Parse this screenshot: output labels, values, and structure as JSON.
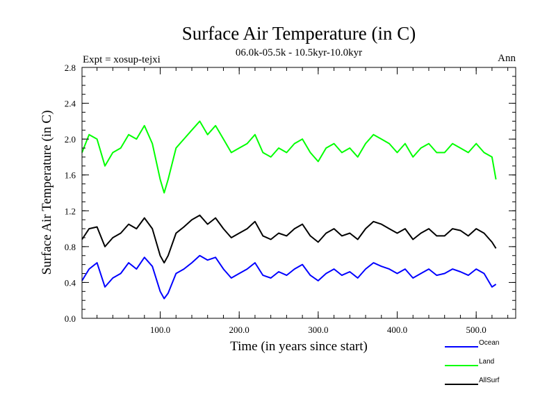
{
  "chart_data": {
    "type": "line",
    "title": "Surface Air Temperature (in C)",
    "subtitle": "06.0k-05.5k - 10.5kyr-10.0kyr",
    "expt_label": "Expt = xosup-tejxi",
    "period_label": "Ann",
    "xlabel": "Time (in years since start)",
    "ylabel": "Surface Air Temperature (in C)",
    "xlim": [
      1,
      550
    ],
    "ylim": [
      0.0,
      2.8
    ],
    "xticks": [
      100,
      200,
      300,
      400,
      500
    ],
    "xtick_labels": [
      "100.0",
      "200.0",
      "300.0",
      "400.0",
      "500.0"
    ],
    "yticks": [
      0.0,
      0.4,
      0.8,
      1.2,
      1.6,
      2.0,
      2.4,
      2.8
    ],
    "ytick_labels": [
      "0.0",
      "0.4",
      "0.8",
      "1.2",
      "1.6",
      "2.0",
      "2.4",
      "2.8"
    ],
    "x": [
      1,
      10,
      20,
      30,
      40,
      50,
      60,
      70,
      80,
      90,
      100,
      105,
      110,
      120,
      130,
      140,
      150,
      160,
      170,
      180,
      190,
      200,
      210,
      220,
      230,
      240,
      250,
      260,
      270,
      280,
      290,
      300,
      310,
      320,
      330,
      340,
      350,
      360,
      370,
      380,
      390,
      400,
      410,
      420,
      430,
      440,
      450,
      460,
      470,
      480,
      490,
      500,
      510,
      520,
      525
    ],
    "series": [
      {
        "name": "Ocean",
        "color": "#0000ff",
        "values": [
          0.42,
          0.55,
          0.62,
          0.35,
          0.45,
          0.5,
          0.62,
          0.55,
          0.68,
          0.58,
          0.3,
          0.22,
          0.28,
          0.5,
          0.55,
          0.62,
          0.7,
          0.65,
          0.68,
          0.55,
          0.45,
          0.5,
          0.55,
          0.62,
          0.48,
          0.45,
          0.52,
          0.48,
          0.55,
          0.6,
          0.48,
          0.42,
          0.5,
          0.55,
          0.48,
          0.52,
          0.45,
          0.55,
          0.62,
          0.58,
          0.55,
          0.5,
          0.55,
          0.45,
          0.5,
          0.55,
          0.48,
          0.5,
          0.55,
          0.52,
          0.48,
          0.55,
          0.5,
          0.35,
          0.38
        ]
      },
      {
        "name": "Land",
        "color": "#00ff00",
        "values": [
          1.85,
          2.05,
          2.0,
          1.7,
          1.85,
          1.9,
          2.05,
          2.0,
          2.15,
          1.95,
          1.55,
          1.4,
          1.55,
          1.9,
          2.0,
          2.1,
          2.2,
          2.05,
          2.15,
          2.0,
          1.85,
          1.9,
          1.95,
          2.05,
          1.85,
          1.8,
          1.9,
          1.85,
          1.95,
          2.0,
          1.85,
          1.75,
          1.9,
          1.95,
          1.85,
          1.9,
          1.8,
          1.95,
          2.05,
          2.0,
          1.95,
          1.85,
          1.95,
          1.8,
          1.9,
          1.95,
          1.85,
          1.85,
          1.95,
          1.9,
          1.85,
          1.95,
          1.85,
          1.8,
          1.55
        ]
      },
      {
        "name": "AllSurf",
        "color": "#000000",
        "values": [
          0.88,
          1.0,
          1.02,
          0.8,
          0.9,
          0.95,
          1.05,
          1.0,
          1.12,
          1.0,
          0.7,
          0.62,
          0.7,
          0.95,
          1.02,
          1.1,
          1.15,
          1.05,
          1.12,
          1.0,
          0.9,
          0.95,
          1.0,
          1.08,
          0.92,
          0.88,
          0.95,
          0.92,
          1.0,
          1.05,
          0.92,
          0.85,
          0.95,
          1.0,
          0.92,
          0.95,
          0.88,
          1.0,
          1.08,
          1.05,
          1.0,
          0.95,
          1.0,
          0.88,
          0.95,
          1.0,
          0.92,
          0.92,
          1.0,
          0.98,
          0.92,
          1.0,
          0.95,
          0.85,
          0.78
        ]
      }
    ],
    "legend": [
      {
        "label": "Ocean",
        "color": "#0000ff"
      },
      {
        "label": "Land",
        "color": "#00ff00"
      },
      {
        "label": "AllSurf",
        "color": "#000000"
      }
    ],
    "legend_position": "bottom-right"
  }
}
